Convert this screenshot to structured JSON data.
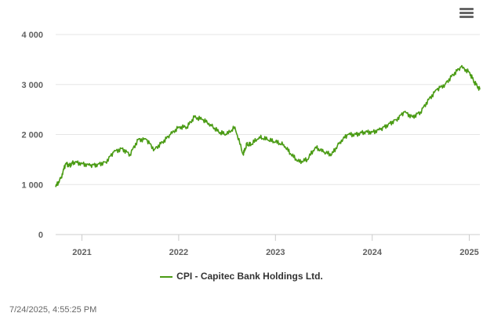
{
  "chart_data": {
    "type": "line",
    "title": "",
    "xlabel": "",
    "ylabel": "",
    "ylim": [
      0,
      4000
    ],
    "y_ticks": [
      0,
      1000,
      2000,
      3000,
      4000
    ],
    "y_tick_labels": [
      "0",
      "1 000",
      "2 000",
      "3 000",
      "4 000"
    ],
    "xlim": [
      "2020-09-24",
      "2025-02-10"
    ],
    "x_ticks": [
      "2021-01-01",
      "2022-01-01",
      "2023-01-01",
      "2024-01-01",
      "2025-01-01"
    ],
    "x_tick_labels": [
      "2021",
      "2022",
      "2023",
      "2024",
      "2025"
    ],
    "grid": true,
    "legend_position": "bottom-center",
    "series": [
      {
        "name": "CPI - Capitec Bank Holdings Ltd.",
        "color": "#4a9b14",
        "x": [
          "2020-09-24",
          "2020-10-15",
          "2020-11-01",
          "2020-11-15",
          "2020-12-01",
          "2021-01-01",
          "2021-02-01",
          "2021-03-01",
          "2021-04-01",
          "2021-05-01",
          "2021-06-01",
          "2021-07-01",
          "2021-08-01",
          "2021-09-01",
          "2021-10-01",
          "2021-11-01",
          "2021-12-01",
          "2022-01-01",
          "2022-02-01",
          "2022-03-01",
          "2022-04-01",
          "2022-05-01",
          "2022-06-01",
          "2022-07-01",
          "2022-08-01",
          "2022-09-01",
          "2022-09-15",
          "2022-10-01",
          "2022-11-01",
          "2022-12-01",
          "2023-01-01",
          "2023-02-01",
          "2023-03-01",
          "2023-04-01",
          "2023-05-01",
          "2023-06-01",
          "2023-07-01",
          "2023-08-01",
          "2023-09-01",
          "2023-10-01",
          "2023-11-01",
          "2023-12-01",
          "2024-01-01",
          "2024-02-01",
          "2024-03-01",
          "2024-04-01",
          "2024-05-01",
          "2024-06-01",
          "2024-07-01",
          "2024-08-01",
          "2024-09-01",
          "2024-10-01",
          "2024-11-01",
          "2024-12-01",
          "2025-01-01",
          "2025-01-20",
          "2025-02-10"
        ],
        "values": [
          950,
          1150,
          1420,
          1380,
          1450,
          1420,
          1380,
          1400,
          1450,
          1650,
          1720,
          1600,
          1900,
          1900,
          1700,
          1850,
          2000,
          2150,
          2150,
          2350,
          2300,
          2200,
          2050,
          2000,
          2150,
          1600,
          1800,
          1800,
          1950,
          1900,
          1850,
          1800,
          1600,
          1450,
          1500,
          1750,
          1650,
          1600,
          1850,
          2000,
          2000,
          2050,
          2050,
          2100,
          2200,
          2300,
          2450,
          2350,
          2450,
          2700,
          2900,
          3000,
          3200,
          3350,
          3250,
          3050,
          2900
        ]
      }
    ]
  },
  "timestamp": "7/24/2025, 4:55:25 PM",
  "menu_icon": "hamburger-menu-icon"
}
